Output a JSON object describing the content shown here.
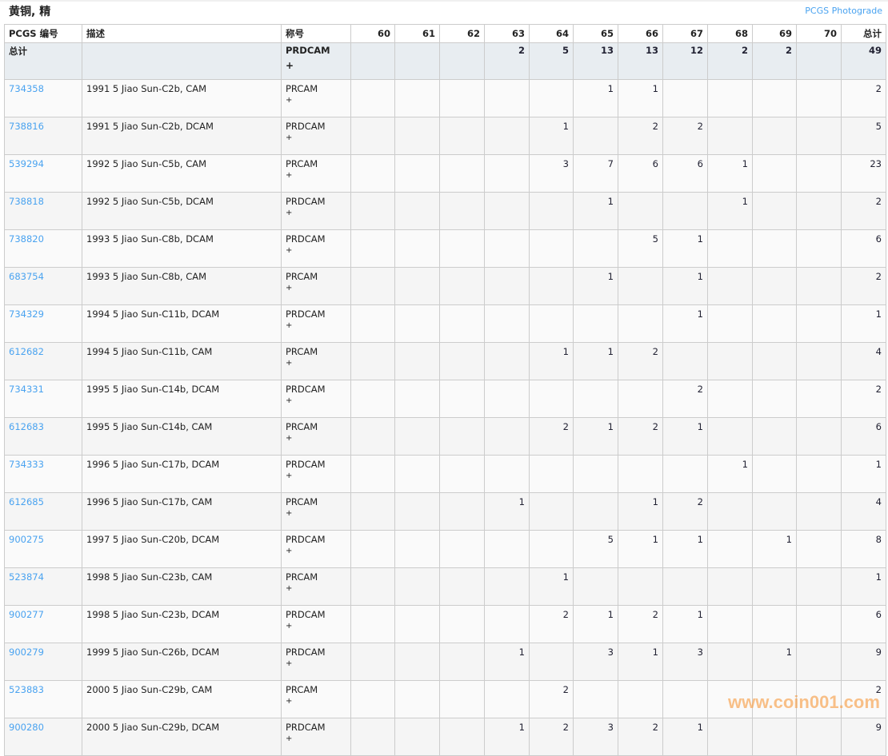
{
  "title": "黄铜, 精",
  "photograde_link": "PCGS Photograde",
  "headers": {
    "code": "PCGS 编号",
    "desc": "描述",
    "designation": "称号",
    "grades": [
      "60",
      "61",
      "62",
      "63",
      "64",
      "65",
      "66",
      "67",
      "68",
      "69",
      "70"
    ],
    "total": "总计"
  },
  "total_row": {
    "label": "总计",
    "designation": "PRDCAM",
    "plus": "+",
    "grades": [
      "",
      "",
      "",
      "2",
      "5",
      "13",
      "13",
      "12",
      "2",
      "2",
      ""
    ],
    "total": "49"
  },
  "rows": [
    {
      "code": "734358",
      "desc": "1991 5 Jiao Sun-C2b, CAM",
      "designation": "PRCAM",
      "plus": "+",
      "grades": [
        "",
        "",
        "",
        "",
        "",
        "1",
        "1",
        "",
        "",
        "",
        ""
      ],
      "total": "2"
    },
    {
      "code": "738816",
      "desc": "1991 5 Jiao Sun-C2b, DCAM",
      "designation": "PRDCAM",
      "plus": "+",
      "grades": [
        "",
        "",
        "",
        "",
        "1",
        "",
        "2",
        "2",
        "",
        "",
        ""
      ],
      "total": "5"
    },
    {
      "code": "539294",
      "desc": "1992 5 Jiao Sun-C5b, CAM",
      "designation": "PRCAM",
      "plus": "+",
      "grades": [
        "",
        "",
        "",
        "",
        "3",
        "7",
        "6",
        "6",
        "1",
        "",
        ""
      ],
      "total": "23"
    },
    {
      "code": "738818",
      "desc": "1992 5 Jiao Sun-C5b, DCAM",
      "designation": "PRDCAM",
      "plus": "+",
      "grades": [
        "",
        "",
        "",
        "",
        "",
        "1",
        "",
        "",
        "1",
        "",
        ""
      ],
      "total": "2"
    },
    {
      "code": "738820",
      "desc": "1993 5 Jiao Sun-C8b, DCAM",
      "designation": "PRDCAM",
      "plus": "+",
      "grades": [
        "",
        "",
        "",
        "",
        "",
        "",
        "5",
        "1",
        "",
        "",
        ""
      ],
      "total": "6"
    },
    {
      "code": "683754",
      "desc": "1993 5 Jiao Sun-C8b, CAM",
      "designation": "PRCAM",
      "plus": "+",
      "grades": [
        "",
        "",
        "",
        "",
        "",
        "1",
        "",
        "1",
        "",
        "",
        ""
      ],
      "total": "2"
    },
    {
      "code": "734329",
      "desc": "1994 5 Jiao Sun-C11b, DCAM",
      "designation": "PRDCAM",
      "plus": "+",
      "grades": [
        "",
        "",
        "",
        "",
        "",
        "",
        "",
        "1",
        "",
        "",
        ""
      ],
      "total": "1"
    },
    {
      "code": "612682",
      "desc": "1994 5 Jiao Sun-C11b, CAM",
      "designation": "PRCAM",
      "plus": "+",
      "grades": [
        "",
        "",
        "",
        "",
        "1",
        "1",
        "2",
        "",
        "",
        "",
        ""
      ],
      "total": "4"
    },
    {
      "code": "734331",
      "desc": "1995 5 Jiao Sun-C14b, DCAM",
      "designation": "PRDCAM",
      "plus": "+",
      "grades": [
        "",
        "",
        "",
        "",
        "",
        "",
        "",
        "2",
        "",
        "",
        ""
      ],
      "total": "2"
    },
    {
      "code": "612683",
      "desc": "1995 5 Jiao Sun-C14b, CAM",
      "designation": "PRCAM",
      "plus": "+",
      "grades": [
        "",
        "",
        "",
        "",
        "2",
        "1",
        "2",
        "1",
        "",
        "",
        ""
      ],
      "total": "6"
    },
    {
      "code": "734333",
      "desc": "1996 5 Jiao Sun-C17b, DCAM",
      "designation": "PRDCAM",
      "plus": "+",
      "grades": [
        "",
        "",
        "",
        "",
        "",
        "",
        "",
        "",
        "1",
        "",
        ""
      ],
      "total": "1"
    },
    {
      "code": "612685",
      "desc": "1996 5 Jiao Sun-C17b, CAM",
      "designation": "PRCAM",
      "plus": "+",
      "grades": [
        "",
        "",
        "",
        "1",
        "",
        "",
        "1",
        "2",
        "",
        "",
        ""
      ],
      "total": "4"
    },
    {
      "code": "900275",
      "desc": "1997 5 Jiao Sun-C20b, DCAM",
      "designation": "PRDCAM",
      "plus": "+",
      "grades": [
        "",
        "",
        "",
        "",
        "",
        "5",
        "1",
        "1",
        "",
        "1",
        ""
      ],
      "total": "8"
    },
    {
      "code": "523874",
      "desc": "1998 5 Jiao Sun-C23b, CAM",
      "designation": "PRCAM",
      "plus": "+",
      "grades": [
        "",
        "",
        "",
        "",
        "1",
        "",
        "",
        "",
        "",
        "",
        ""
      ],
      "total": "1"
    },
    {
      "code": "900277",
      "desc": "1998 5 Jiao Sun-C23b, DCAM",
      "designation": "PRDCAM",
      "plus": "+",
      "grades": [
        "",
        "",
        "",
        "",
        "2",
        "1",
        "2",
        "1",
        "",
        "",
        ""
      ],
      "total": "6"
    },
    {
      "code": "900279",
      "desc": "1999 5 Jiao Sun-C26b, DCAM",
      "designation": "PRDCAM",
      "plus": "+",
      "grades": [
        "",
        "",
        "",
        "1",
        "",
        "3",
        "1",
        "3",
        "",
        "1",
        ""
      ],
      "total": "9"
    },
    {
      "code": "523883",
      "desc": "2000 5 Jiao Sun-C29b, CAM",
      "designation": "PRCAM",
      "plus": "+",
      "grades": [
        "",
        "",
        "",
        "",
        "2",
        "",
        "",
        "",
        "",
        "",
        ""
      ],
      "total": "2"
    },
    {
      "code": "900280",
      "desc": "2000 5 Jiao Sun-C29b, DCAM",
      "designation": "PRDCAM",
      "plus": "+",
      "grades": [
        "",
        "",
        "",
        "1",
        "2",
        "3",
        "2",
        "1",
        "",
        "",
        ""
      ],
      "total": "9"
    }
  ],
  "watermark": "www.coin001.com",
  "colors": {
    "link": "#4aa3f0",
    "total_row_bg": "#e8edf1",
    "watermark": "#f7a04a"
  }
}
